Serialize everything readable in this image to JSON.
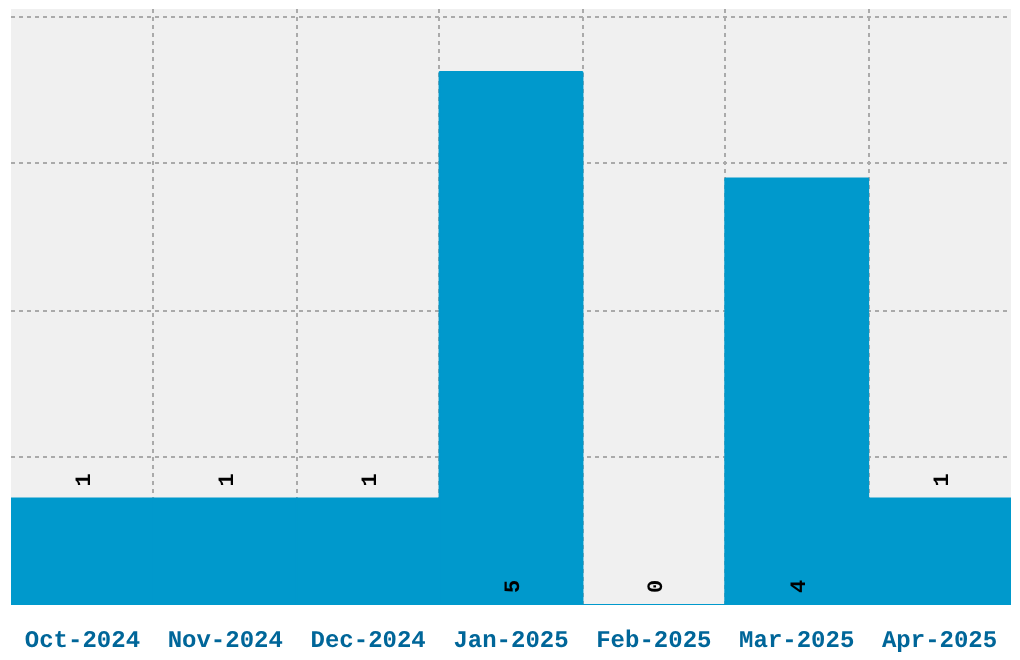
{
  "chart_data": {
    "type": "bar",
    "categories": [
      "Oct-2024",
      "Nov-2024",
      "Dec-2024",
      "Jan-2025",
      "Feb-2025",
      "Mar-2025",
      "Apr-2025"
    ],
    "values": [
      1,
      1,
      1,
      5,
      0,
      4,
      1
    ],
    "color": "#0099cc",
    "data_labels": true,
    "grid": true,
    "ylim": [
      0,
      5.59
    ],
    "yticks": [
      {
        "value": 1.38,
        "label": null
      },
      {
        "value": 2.76,
        "label": null
      },
      {
        "value": 4.14,
        "label": null
      },
      {
        "value": 5.51,
        "label": null
      }
    ],
    "tick_labels": "x"
  }
}
